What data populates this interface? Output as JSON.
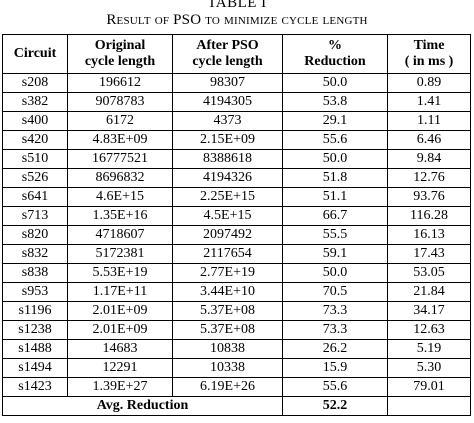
{
  "caption": {
    "label": "TABLE I",
    "title": "Result of PSO to minimize cycle length"
  },
  "table": {
    "headers": [
      {
        "line1": "Circuit",
        "line2": ""
      },
      {
        "line1": "Original",
        "line2": "cycle length"
      },
      {
        "line1": "After PSO",
        "line2": "cycle length"
      },
      {
        "line1": "%",
        "line2": "Reduction"
      },
      {
        "line1": "Time",
        "line2": "( in ms )"
      }
    ],
    "rows": [
      [
        "s208",
        "196612",
        "98307",
        "50.0",
        "0.89"
      ],
      [
        "s382",
        "9078783",
        "4194305",
        "53.8",
        "1.41"
      ],
      [
        "s400",
        "6172",
        "4373",
        "29.1",
        "1.11"
      ],
      [
        "s420",
        "4.83E+09",
        "2.15E+09",
        "55.6",
        "6.46"
      ],
      [
        "s510",
        "16777521",
        "8388618",
        "50.0",
        "9.84"
      ],
      [
        "s526",
        "8696832",
        "4194326",
        "51.8",
        "12.76"
      ],
      [
        "s641",
        "4.6E+15",
        "2.25E+15",
        "51.1",
        "93.76"
      ],
      [
        "s713",
        "1.35E+16",
        "4.5E+15",
        "66.7",
        "116.28"
      ],
      [
        "s820",
        "4718607",
        "2097492",
        "55.5",
        "16.13"
      ],
      [
        "s832",
        "5172381",
        "2117654",
        "59.1",
        "17.43"
      ],
      [
        "s838",
        "5.53E+19",
        "2.77E+19",
        "50.0",
        "53.05"
      ],
      [
        "s953",
        "1.17E+11",
        "3.44E+10",
        "70.5",
        "21.84"
      ],
      [
        "s1196",
        "2.01E+09",
        "5.37E+08",
        "73.3",
        "34.17"
      ],
      [
        "s1238",
        "2.01E+09",
        "5.37E+08",
        "73.3",
        "12.63"
      ],
      [
        "s1488",
        "14683",
        "10838",
        "26.2",
        "5.19"
      ],
      [
        "s1494",
        "12291",
        "10338",
        "15.9",
        "5.30"
      ],
      [
        "s1423",
        "1.39E+27",
        "6.19E+26",
        "55.6",
        "79.01"
      ]
    ],
    "footer": {
      "label": "Avg. Reduction",
      "value": "52.2",
      "time": ""
    }
  }
}
